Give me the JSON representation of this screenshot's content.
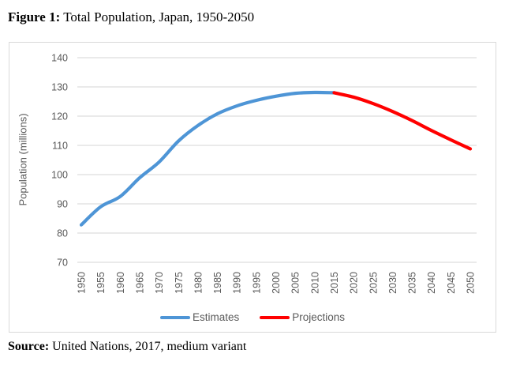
{
  "header": {
    "figure_label": "Figure 1:",
    "figure_title": " Total Population, Japan, 1950-2050"
  },
  "footer": {
    "source_label": "Source:",
    "source_text": " United Nations, 2017, medium variant"
  },
  "colors": {
    "estimates_line": "#4E95D6",
    "projections_line": "#FF0000",
    "gridline": "#d6d6d6",
    "axis_text": "#595959",
    "chart_border": "#d9d9d9"
  },
  "chart_data": {
    "type": "line",
    "title": "Total Population, Japan, 1950-2050",
    "xlabel": "",
    "ylabel": "Population (millions)",
    "ylim": [
      70,
      140
    ],
    "y_ticks": [
      70,
      80,
      90,
      100,
      110,
      120,
      130,
      140
    ],
    "x_ticks": [
      1950,
      1955,
      1960,
      1965,
      1970,
      1975,
      1980,
      1985,
      1990,
      1995,
      2000,
      2005,
      2010,
      2015,
      2020,
      2025,
      2030,
      2035,
      2040,
      2045,
      2050
    ],
    "grid": true,
    "legend_position": "bottom",
    "series": [
      {
        "name": "Estimates",
        "color": "#4E95D6",
        "x": [
          1950,
          1955,
          1960,
          1965,
          1970,
          1975,
          1980,
          1985,
          1990,
          1995,
          2000,
          2005,
          2010,
          2015
        ],
        "values": [
          82.8,
          89.0,
          92.5,
          98.9,
          104.3,
          111.5,
          116.8,
          120.8,
          123.5,
          125.4,
          126.8,
          127.8,
          128.1,
          128.0
        ]
      },
      {
        "name": "Projections",
        "color": "#FF0000",
        "x": [
          2015,
          2020,
          2025,
          2030,
          2035,
          2040,
          2045,
          2050
        ],
        "values": [
          128.0,
          126.5,
          124.3,
          121.6,
          118.5,
          115.1,
          111.9,
          108.8
        ]
      }
    ]
  }
}
